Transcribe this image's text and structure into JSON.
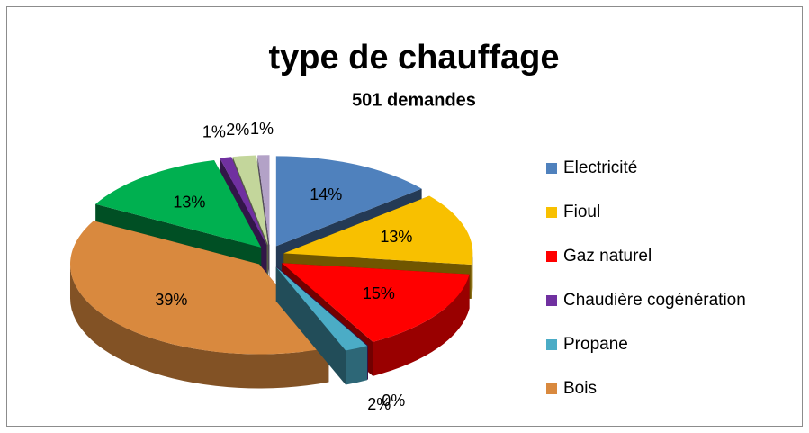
{
  "chart_data": {
    "type": "pie",
    "title": "type de chauffage",
    "subtitle": "501 demandes",
    "categories": [
      "Electricité",
      "Fioul",
      "Gaz naturel",
      "Chaudière cogénération",
      "Propane",
      "Bois",
      null,
      null,
      null,
      null
    ],
    "values": [
      14,
      13,
      15,
      0,
      2,
      39,
      13,
      1,
      2,
      1
    ],
    "value_labels": [
      "14%",
      "13%",
      "15%",
      "0%",
      "2%",
      "39%",
      "13%",
      "1%",
      "2%",
      "1%"
    ],
    "colors": [
      "#4f81bd",
      "#f8c000",
      "#ff0000",
      "#7030a0",
      "#4bacc6",
      "#d9893e",
      "#00b050",
      "#7030a0",
      "#c3d69b",
      "#b3a2c7"
    ],
    "legend": "right"
  }
}
